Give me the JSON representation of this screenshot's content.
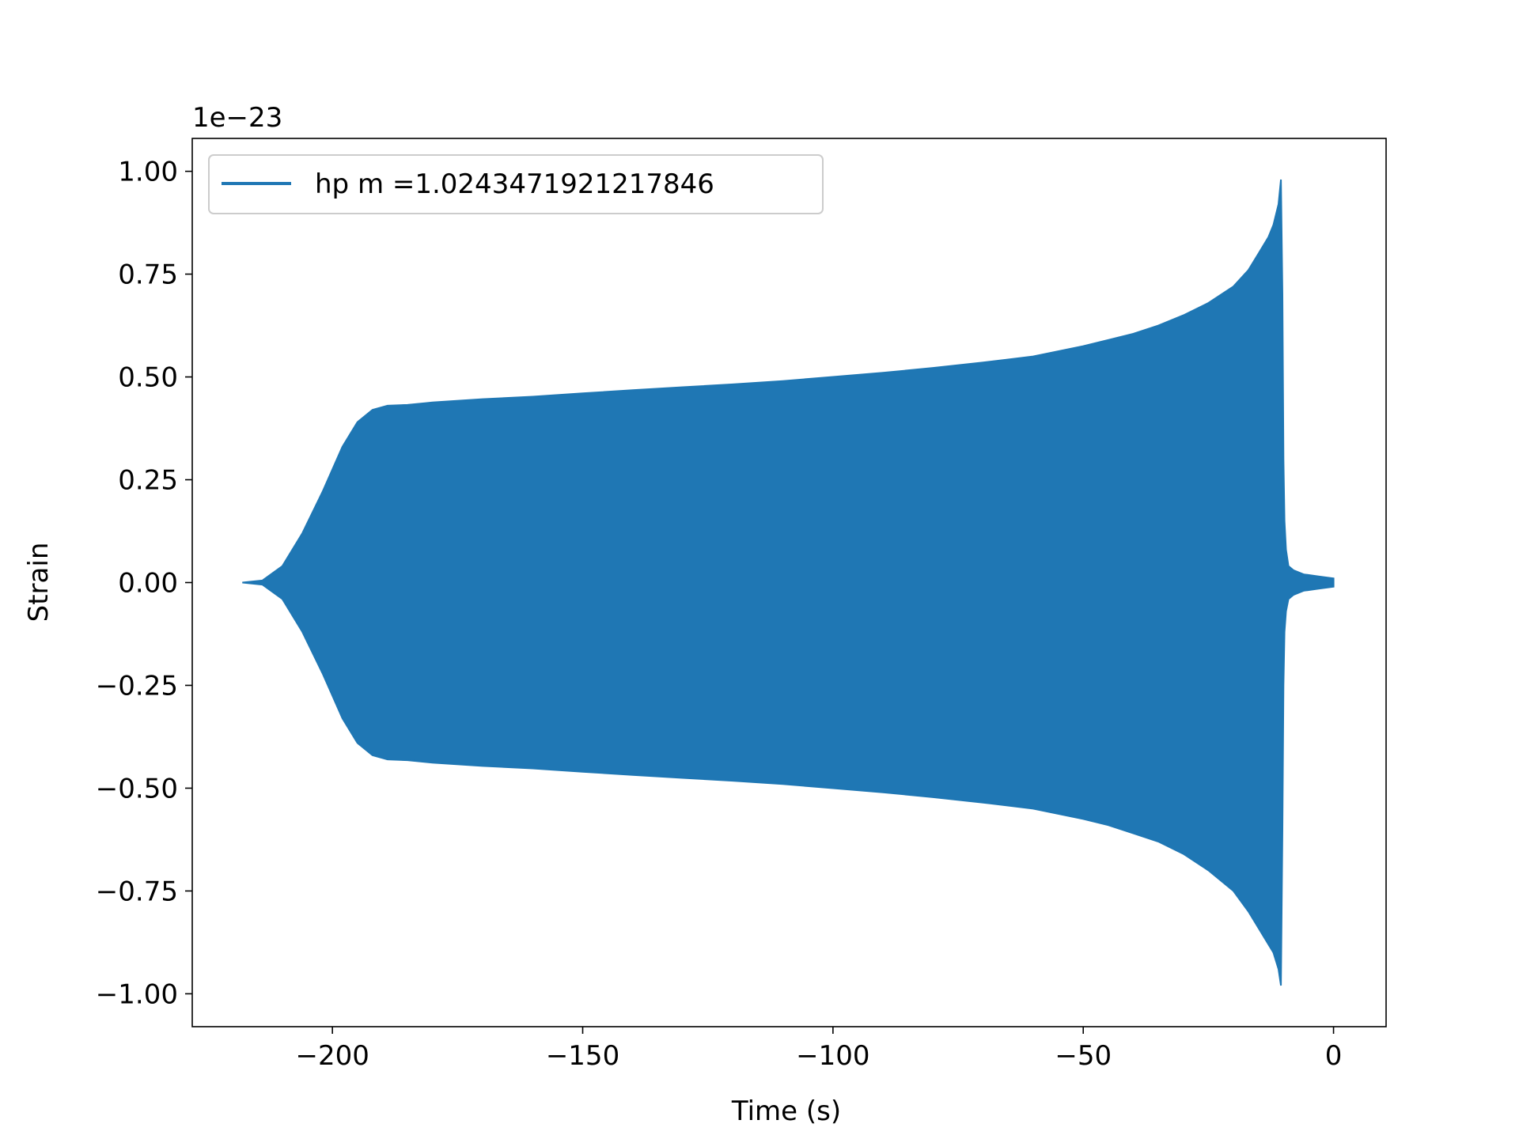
{
  "chart_data": {
    "type": "line",
    "title": "",
    "xlabel": "Time (s)",
    "ylabel": "Strain",
    "y_offset_label": "1e−23",
    "xlim": [
      -228,
      10.5
    ],
    "ylim": [
      -1.08,
      1.08
    ],
    "x_ticks": [
      -200,
      -150,
      -100,
      -50,
      0
    ],
    "x_tick_labels": [
      "−200",
      "−150",
      "−100",
      "−50",
      "0"
    ],
    "y_ticks": [
      1.0,
      0.75,
      0.5,
      0.25,
      0.0,
      -0.25,
      -0.5,
      -0.75,
      -1.0
    ],
    "y_tick_labels": [
      "1.00",
      "0.75",
      "0.50",
      "0.25",
      "0.00",
      "−0.25",
      "−0.50",
      "−0.75",
      "−1.00"
    ],
    "grid": false,
    "legend_position": "top-left",
    "series": [
      {
        "name": "hp m =1.0243471921217846",
        "color": "#1f77b4",
        "envelope": {
          "x": [
            -218,
            -214,
            -210,
            -206,
            -202,
            -198,
            -195,
            -192,
            -189,
            -185,
            -180,
            -170,
            -160,
            -150,
            -140,
            -130,
            -120,
            -110,
            -100,
            -90,
            -80,
            -70,
            -60,
            -50,
            -45,
            -40,
            -35,
            -30,
            -25,
            -20,
            -17,
            -15,
            -13,
            -12,
            -11,
            -10.5,
            -10.2,
            -10,
            -9.8,
            -9.5,
            -9,
            -8,
            -6,
            -3,
            0
          ],
          "upper": [
            0.0,
            0.005,
            0.04,
            0.12,
            0.22,
            0.33,
            0.39,
            0.42,
            0.43,
            0.432,
            0.438,
            0.446,
            0.452,
            0.46,
            0.468,
            0.475,
            0.482,
            0.49,
            0.5,
            0.51,
            0.522,
            0.535,
            0.55,
            0.575,
            0.59,
            0.605,
            0.625,
            0.65,
            0.68,
            0.72,
            0.76,
            0.8,
            0.84,
            0.87,
            0.92,
            0.98,
            0.7,
            0.3,
            0.15,
            0.08,
            0.04,
            0.03,
            0.02,
            0.015,
            0.01
          ],
          "lower": [
            0.0,
            -0.005,
            -0.04,
            -0.12,
            -0.22,
            -0.33,
            -0.39,
            -0.42,
            -0.43,
            -0.432,
            -0.438,
            -0.446,
            -0.452,
            -0.46,
            -0.468,
            -0.475,
            -0.482,
            -0.49,
            -0.5,
            -0.51,
            -0.522,
            -0.535,
            -0.55,
            -0.575,
            -0.59,
            -0.61,
            -0.63,
            -0.66,
            -0.7,
            -0.75,
            -0.8,
            -0.84,
            -0.88,
            -0.9,
            -0.94,
            -0.98,
            -0.6,
            -0.25,
            -0.12,
            -0.07,
            -0.04,
            -0.03,
            -0.02,
            -0.015,
            -0.01
          ]
        }
      }
    ]
  }
}
